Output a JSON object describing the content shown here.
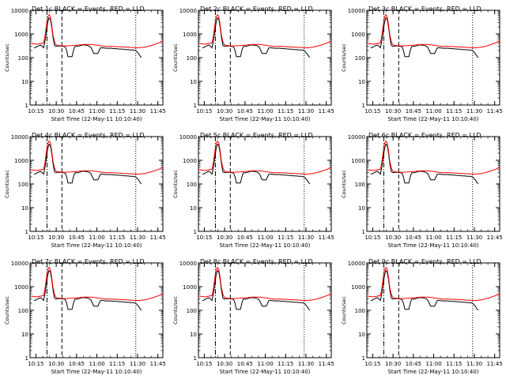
{
  "figure": {
    "xlabel": "Start Time (22-May-11 10:10:40)",
    "ylabel": "Counts/sec",
    "colors": {
      "events": "#000000",
      "lld": "#ff0000",
      "frame": "#000000"
    }
  },
  "chart_data": [
    {
      "type": "line",
      "title": "Det 1c BLACK = Events, RED = LLD",
      "panel_label": "Det 1c"
    },
    {
      "type": "line",
      "title": "Det 2c BLACK = Events, RED = LLD",
      "panel_label": "Det 2c"
    },
    {
      "type": "line",
      "title": "Det 3c BLACK = Events, RED = LLD",
      "panel_label": "Det 3c"
    },
    {
      "type": "line",
      "title": "Det 4c BLACK = Events, RED = LLD",
      "panel_label": "Det 4c"
    },
    {
      "type": "line",
      "title": "Det 5c BLACK = Events, RED = LLD",
      "panel_label": "Det 5c"
    },
    {
      "type": "line",
      "title": "Det 6c BLACK = Events, RED = LLD",
      "panel_label": "Det 6c"
    },
    {
      "type": "line",
      "title": "Det 7c BLACK = Events, RED = LLD",
      "panel_label": "Det 7c"
    },
    {
      "type": "line",
      "title": "Det 8c BLACK = Events, RED = LLD",
      "panel_label": "Det 8c"
    },
    {
      "type": "line",
      "title": "Det 9c BLACK = Events, RED = LLD",
      "panel_label": "Det 9c"
    }
  ],
  "shared": {
    "x_axis": {
      "ticks": [
        "10:15",
        "10:30",
        "10:45",
        "11:00",
        "11:15",
        "11:30",
        "11:45"
      ],
      "tick_minutes": [
        4.33,
        19.33,
        34.33,
        49.33,
        64.33,
        79.33,
        94.33
      ],
      "range_minutes": [
        0,
        98
      ]
    },
    "y_axis": {
      "scale": "log",
      "range": [
        1,
        10000
      ],
      "ticks": [
        "1",
        "10",
        "100",
        "1000",
        "10000"
      ]
    },
    "markers": [
      {
        "style": "dash-dot",
        "x_minutes": 12.5
      },
      {
        "style": "dashed",
        "x_minutes": 23.5
      },
      {
        "style": "dotted",
        "x_minutes": 78.0
      }
    ],
    "events_series": {
      "name": "Events",
      "x_minutes": [
        3,
        4,
        5,
        6,
        7,
        8,
        9,
        10,
        11,
        12,
        13,
        14,
        15,
        16,
        17,
        18,
        19,
        20,
        21,
        22,
        23,
        24,
        25,
        26,
        27,
        28,
        29,
        30,
        31,
        32,
        33,
        34,
        35,
        36,
        37,
        38,
        39,
        40,
        41,
        42,
        43,
        44,
        45,
        46,
        47,
        48,
        50,
        52,
        54,
        56,
        58,
        60,
        62,
        64,
        66,
        68,
        70,
        72,
        74,
        76,
        78,
        80,
        82
      ],
      "y": [
        260,
        270,
        290,
        310,
        330,
        340,
        300,
        260,
        500,
        1200,
        3000,
        4800,
        4200,
        2000,
        700,
        330,
        300,
        310,
        310,
        310,
        310,
        300,
        300,
        280,
        200,
        110,
        110,
        110,
        110,
        200,
        290,
        300,
        300,
        310,
        320,
        330,
        350,
        340,
        340,
        330,
        320,
        300,
        270,
        200,
        150,
        150,
        150,
        260,
        260,
        250,
        250,
        250,
        240,
        240,
        230,
        230,
        220,
        220,
        210,
        210,
        200,
        150,
        100
      ]
    },
    "lld_series": {
      "name": "LLD",
      "x_minutes": [
        0,
        5,
        10,
        11,
        12,
        13,
        14,
        15,
        16,
        17,
        18,
        19,
        20,
        25,
        30,
        35,
        40,
        45,
        50,
        55,
        60,
        65,
        70,
        75,
        80,
        85,
        90,
        95,
        98
      ],
      "y": [
        400,
        370,
        420,
        800,
        2200,
        5000,
        6500,
        5500,
        2500,
        900,
        480,
        360,
        330,
        310,
        320,
        340,
        360,
        360,
        330,
        300,
        300,
        290,
        280,
        270,
        260,
        280,
        330,
        420,
        500
      ]
    }
  }
}
